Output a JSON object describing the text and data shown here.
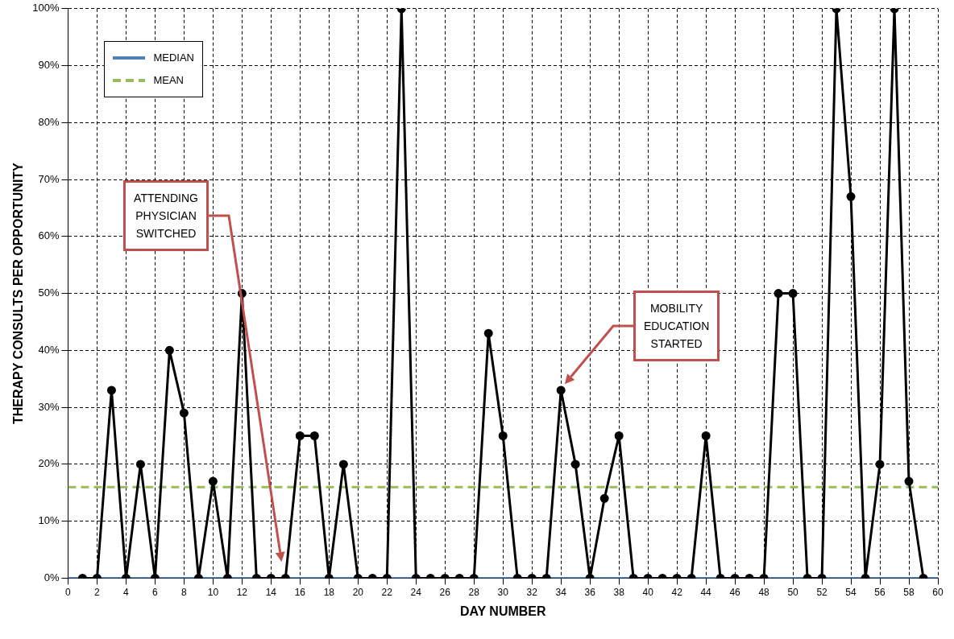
{
  "chart_data": {
    "type": "line",
    "xlabel": "DAY NUMBER",
    "ylabel": "THERAPY CONSULTS PER OPPORTUNITY",
    "x": [
      1,
      2,
      3,
      4,
      5,
      6,
      7,
      8,
      9,
      10,
      11,
      12,
      13,
      14,
      15,
      16,
      17,
      18,
      19,
      20,
      21,
      22,
      23,
      24,
      25,
      26,
      27,
      28,
      29,
      30,
      31,
      32,
      33,
      34,
      35,
      36,
      37,
      38,
      39,
      40,
      41,
      42,
      43,
      44,
      45,
      46,
      47,
      48,
      49,
      50,
      51,
      52,
      53,
      54,
      55,
      56,
      57,
      58,
      59
    ],
    "series": [
      {
        "color": "#000000",
        "values": [
          0,
          0,
          33,
          0,
          20,
          0,
          40,
          29,
          0,
          17,
          0,
          50,
          0,
          0,
          0,
          25,
          25,
          0,
          20,
          0,
          0,
          0,
          100,
          0,
          0,
          0,
          0,
          0,
          43,
          25,
          0,
          0,
          0,
          33,
          20,
          0,
          14,
          25,
          0,
          0,
          0,
          0,
          0,
          25,
          0,
          0,
          0,
          0,
          50,
          50,
          0,
          0,
          100,
          67,
          0,
          20,
          100,
          17,
          0
        ]
      }
    ],
    "xlim": [
      0,
      60
    ],
    "xticks": [
      0,
      2,
      4,
      6,
      8,
      10,
      12,
      14,
      16,
      18,
      20,
      22,
      24,
      26,
      28,
      30,
      32,
      34,
      36,
      38,
      40,
      42,
      44,
      46,
      48,
      50,
      52,
      54,
      56,
      58,
      60
    ],
    "ylim": [
      0,
      100
    ],
    "yticks": [
      {
        "value": 0,
        "label": "0%"
      },
      {
        "value": 10,
        "label": "10%"
      },
      {
        "value": 20,
        "label": "20%"
      },
      {
        "value": 30,
        "label": "30%"
      },
      {
        "value": 40,
        "label": "40%"
      },
      {
        "value": 50,
        "label": "50%"
      },
      {
        "value": 60,
        "label": "60%"
      },
      {
        "value": 70,
        "label": "70%"
      },
      {
        "value": 80,
        "label": "80%"
      },
      {
        "value": 90,
        "label": "90%"
      },
      {
        "value": 100,
        "label": "100%"
      }
    ],
    "ref_lines": [
      {
        "axis": "y",
        "value": 0,
        "label": "MEDIAN",
        "color": "#4f81bd",
        "line_style": "solid"
      },
      {
        "axis": "y",
        "value": 16,
        "label": "MEAN",
        "color": "#9bbb59",
        "line_style": "dashed"
      }
    ],
    "annotations": [
      "ATTENDING\nPHYSICIAN\nSWITCHED",
      "MOBILITY\nEDUCATION\nSTARTED"
    ],
    "grid": true,
    "legend": "top left",
    "marker": "circle",
    "line_style": "solid"
  }
}
